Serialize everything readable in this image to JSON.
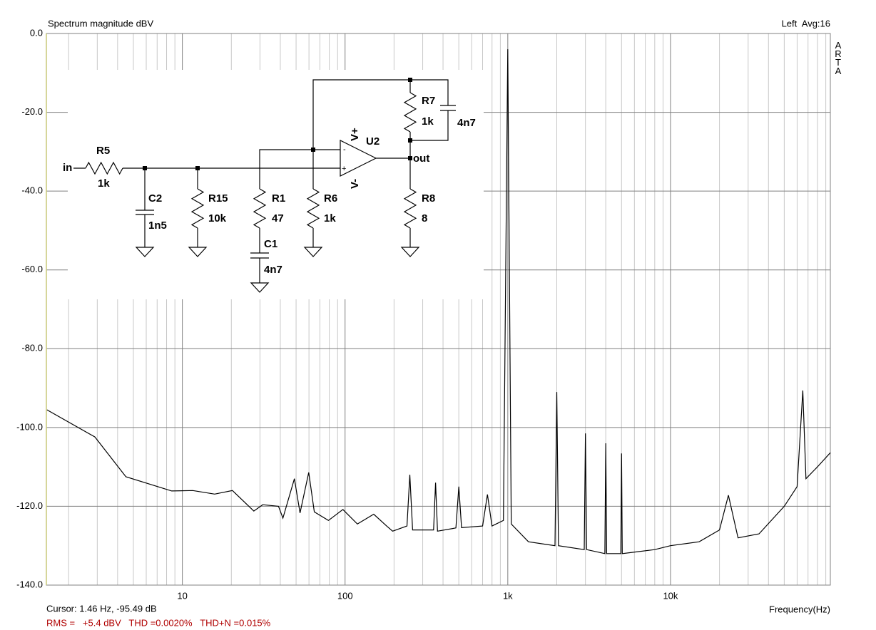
{
  "chart_data": {
    "type": "line",
    "title": "Spectrum magnitude dBV",
    "x_label": "Frequency(Hz)",
    "x_log": true,
    "grid": true,
    "minor_grid": true,
    "color": "#000000",
    "xlim": [
      1.46,
      96000
    ],
    "ylim": [
      -140,
      0
    ],
    "xticks": [
      10,
      100,
      {
        "value": 1000,
        "label": "1k"
      },
      {
        "value": 10000,
        "label": "10k"
      }
    ],
    "yticks": [
      {
        "value": 0,
        "label": "0.0"
      },
      {
        "value": -20,
        "label": "-20.0"
      },
      {
        "value": -40,
        "label": "-40.0"
      },
      {
        "value": -60,
        "label": "-60.0"
      },
      {
        "value": -80,
        "label": "-80.0"
      },
      {
        "value": -100,
        "label": "-100.0"
      },
      {
        "value": -120,
        "label": "-120.0"
      },
      {
        "value": -140,
        "label": "-140.0"
      }
    ],
    "x": [
      1.47,
      2.9,
      4.5,
      8.6,
      11.6,
      15.8,
      20.3,
      27.5,
      31.2,
      39,
      41.5,
      48.8,
      52.9,
      59.8,
      64.7,
      79,
      97,
      119,
      150,
      180,
      196,
      240,
      250,
      260,
      350,
      360,
      370,
      480,
      500,
      520,
      700,
      750,
      800,
      940,
      1000,
      1050,
      1340,
      1950,
      2000,
      2050,
      2950,
      3000,
      3050,
      3950,
      4000,
      4050,
      4950,
      5000,
      5050,
      8000,
      10000,
      15000,
      20000,
      22700,
      26000,
      35000,
      50000,
      60000,
      65000,
      68000,
      80000,
      96000
    ],
    "values": [
      -95.5,
      -102.4,
      -112.5,
      -116.1,
      -116,
      -116.9,
      -116,
      -121.2,
      -119.6,
      -120,
      -123,
      -113,
      -121.7,
      -111.4,
      -121.4,
      -123.6,
      -120.8,
      -124.5,
      -122,
      -125,
      -126.3,
      -125,
      -112,
      -126,
      -126,
      -114,
      -126.3,
      -125.5,
      -115,
      -125.4,
      -125,
      -117,
      -125,
      -123.6,
      -4.0,
      -124.5,
      -129,
      -130,
      -91.0,
      -130,
      -131,
      -101.5,
      -131,
      -132,
      -104,
      -132,
      -132,
      -106.6,
      -132,
      -131,
      -130,
      -129,
      -126,
      -117.2,
      -128,
      -127,
      -120,
      -115,
      -90.6,
      -113,
      -110,
      -106.4
    ]
  },
  "header_right": "Left  Avg:16",
  "side_label": "ARTA",
  "footer": {
    "cursor": "Cursor: 1.46 Hz, -95.49 dB",
    "stats": "RMS =   +5.4 dBV   THD =0.0020%   THD+N =0.015%"
  },
  "schematic": {
    "input": "in",
    "output": "out",
    "opamp": "U2",
    "v_pos": "V+",
    "v_neg": "V-",
    "r5": {
      "name": "R5",
      "value": "1k"
    },
    "c2": {
      "name": "C2",
      "value": "1n5"
    },
    "r15": {
      "name": "R15",
      "value": "10k"
    },
    "r1": {
      "name": "R1",
      "value": "47"
    },
    "c1": {
      "name": "C1",
      "value": "4n7"
    },
    "r6": {
      "name": "R6",
      "value": "1k"
    },
    "r7": {
      "name": "R7",
      "value": "1k"
    },
    "c3": {
      "value": "4n7"
    },
    "r8": {
      "name": "R8",
      "value": "8"
    }
  }
}
